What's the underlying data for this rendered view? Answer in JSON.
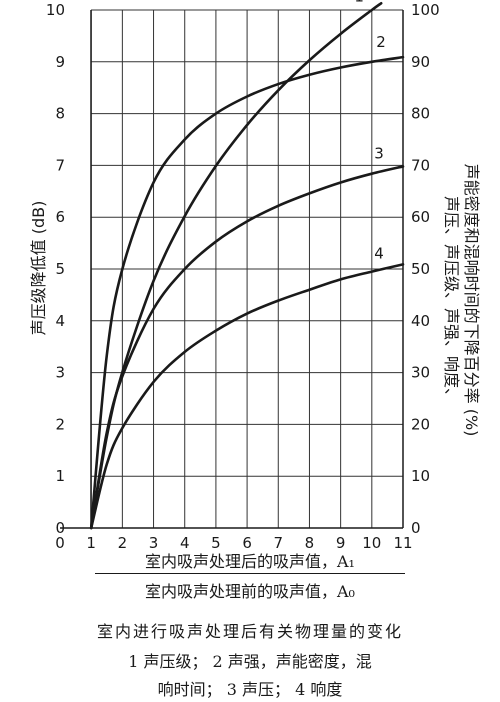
{
  "chart_data": {
    "type": "line",
    "y_left": {
      "label": "声压级降低值 (dB)",
      "ticks": [
        "0",
        "1",
        "2",
        "3",
        "4",
        "5",
        "6",
        "7",
        "8",
        "9",
        "10"
      ],
      "lim": [
        0,
        10
      ]
    },
    "y_right": {
      "label_line1": "声压、声压级、声强、响度、",
      "label_line2": "声能密度和混响时间的下降百分率 (%)",
      "ticks": [
        "0",
        "10",
        "20",
        "30",
        "40",
        "50",
        "60",
        "70",
        "80",
        "90",
        "100"
      ],
      "lim": [
        0,
        100
      ]
    },
    "x": {
      "ticks": [
        "0",
        "1",
        "2",
        "3",
        "4",
        "5",
        "6",
        "7",
        "8",
        "9",
        "10",
        "11"
      ],
      "lim": [
        0,
        11
      ],
      "label_numerator": "室内吸声处理后的吸声值，A₁",
      "label_denominator": "室内吸声处理前的吸声值，A₀"
    },
    "grid": true,
    "series": [
      {
        "name": "1",
        "axis": "left",
        "x": [
          1,
          1.5,
          2,
          3,
          4,
          5,
          6,
          7,
          8,
          9,
          10,
          10.3
        ],
        "values": [
          0,
          1.76,
          3.01,
          4.77,
          6.02,
          6.99,
          7.78,
          8.45,
          9.03,
          9.54,
          10.0,
          10.13
        ]
      },
      {
        "name": "2",
        "axis": "right",
        "x": [
          1,
          1.5,
          2,
          3,
          4,
          5,
          6,
          7,
          8,
          9,
          10,
          11
        ],
        "values": [
          0,
          33.3,
          50.0,
          66.7,
          75.0,
          80.0,
          83.3,
          85.7,
          87.5,
          88.9,
          90.0,
          90.9
        ]
      },
      {
        "name": "3",
        "axis": "right",
        "x": [
          1,
          1.5,
          2,
          3,
          4,
          5,
          6,
          7,
          8,
          9,
          10,
          11
        ],
        "values": [
          0,
          18.4,
          29.3,
          42.3,
          50.0,
          55.3,
          59.2,
          62.2,
          64.6,
          66.7,
          68.4,
          69.8
        ]
      },
      {
        "name": "4",
        "axis": "right",
        "x": [
          1,
          1.5,
          2,
          3,
          4,
          5,
          6,
          7,
          8,
          9,
          10,
          11
        ],
        "values": [
          0,
          12.3,
          19.3,
          28.2,
          34.0,
          38.1,
          41.4,
          43.9,
          46.0,
          48.0,
          49.5,
          50.9
        ]
      }
    ]
  },
  "caption": {
    "line1": "室内进行吸声处理后有关物理量的变化",
    "line2": "1 声压级；  2 声强，声能密度，混",
    "line3": "响时间；  3 声压；  4 响度"
  }
}
